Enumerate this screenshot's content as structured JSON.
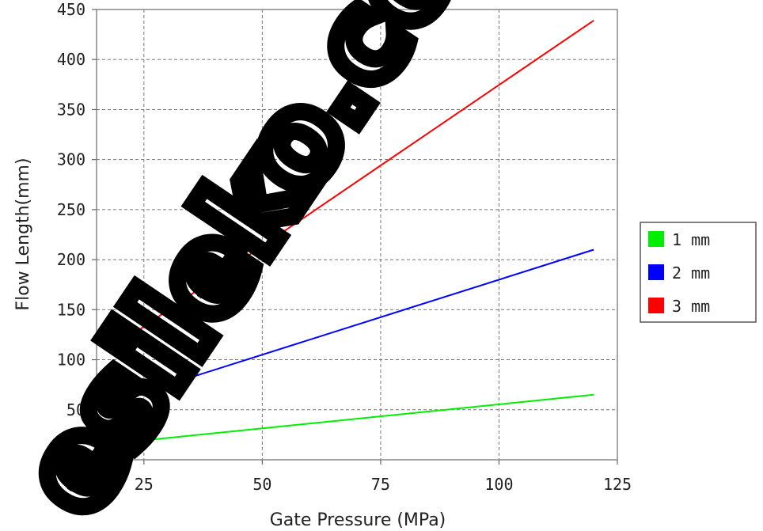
{
  "chart_data": {
    "type": "line",
    "xlabel": "Gate Pressure (MPa)",
    "ylabel": "Flow Length(mm)",
    "xlim": [
      15,
      125
    ],
    "ylim": [
      0,
      450
    ],
    "xticks": [
      25,
      50,
      75,
      100,
      125
    ],
    "yticks": [
      0,
      50,
      100,
      150,
      200,
      250,
      300,
      350,
      400,
      450
    ],
    "grid": true,
    "legend_position": "right",
    "series": [
      {
        "name": "1 mm",
        "color": "#00ee00",
        "x": [
          20,
          120
        ],
        "y": [
          17,
          65
        ]
      },
      {
        "name": "2 mm",
        "color": "#0000ff",
        "x": [
          20,
          120
        ],
        "y": [
          60,
          210
        ]
      },
      {
        "name": "3 mm",
        "color": "#ff0000",
        "x": [
          20,
          120
        ],
        "y": [
          117,
          439
        ]
      }
    ]
  },
  "watermark": {
    "text": "esileko.com"
  }
}
